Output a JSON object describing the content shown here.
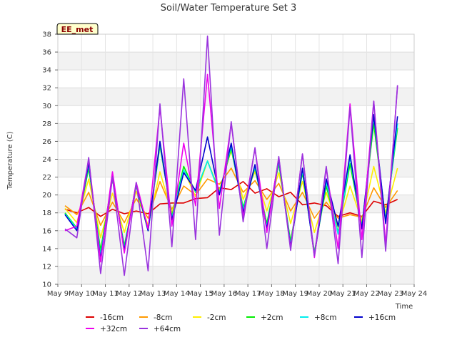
{
  "chart_data": {
    "type": "line",
    "title": "Soil/Water Temperature Set 3",
    "xlabel": "Time",
    "ylabel": "Temperature (C)",
    "badge": "EE_met",
    "xlim": [
      9,
      24
    ],
    "ylim": [
      10,
      38
    ],
    "x_ticks": [
      9,
      10,
      11,
      12,
      13,
      14,
      15,
      16,
      17,
      18,
      19,
      20,
      21,
      22,
      23,
      24
    ],
    "x_tick_labels": [
      "May 9",
      "May 10",
      "May 11",
      "May 12",
      "May 13",
      "May 14",
      "May 15",
      "May 16",
      "May 17",
      "May 18",
      "May 19",
      "May 20",
      "May 21",
      "May 22",
      "May 23",
      "May 24"
    ],
    "y_ticks": [
      10,
      12,
      14,
      16,
      18,
      20,
      22,
      24,
      26,
      28,
      30,
      32,
      34,
      36,
      38
    ],
    "y_tick_labels": [
      "10",
      "12",
      "14",
      "16",
      "18",
      "20",
      "22",
      "24",
      "26",
      "28",
      "30",
      "32",
      "34",
      "36",
      "38"
    ],
    "grid": true,
    "legend_position": "bottom",
    "series": [
      {
        "name": "-16cm",
        "color": "#dd0000",
        "x": [
          9.3,
          9.8,
          10.3,
          10.8,
          11.3,
          11.8,
          12.3,
          12.8,
          13.3,
          13.8,
          14.3,
          14.8,
          15.3,
          15.8,
          16.3,
          16.8,
          17.3,
          17.8,
          18.3,
          18.8,
          19.3,
          19.8,
          20.3,
          20.8,
          21.3,
          21.8,
          22.3,
          22.8,
          23.3
        ],
        "y": [
          18.4,
          18.0,
          18.6,
          17.6,
          18.4,
          17.9,
          18.2,
          17.9,
          19.0,
          19.1,
          19.1,
          19.6,
          19.7,
          20.8,
          20.6,
          21.5,
          20.2,
          20.7,
          19.8,
          20.3,
          18.9,
          19.1,
          18.8,
          17.6,
          18.0,
          17.6,
          19.3,
          18.9,
          19.5
        ]
      },
      {
        "name": "-8cm",
        "color": "#ff9900",
        "x": [
          9.3,
          9.8,
          10.3,
          10.8,
          11.3,
          11.8,
          12.3,
          12.8,
          13.3,
          13.8,
          14.3,
          14.8,
          15.3,
          15.8,
          16.3,
          16.8,
          17.3,
          17.8,
          18.3,
          18.8,
          19.3,
          19.8,
          20.3,
          20.8,
          21.3,
          21.8,
          22.3,
          22.8,
          23.3
        ],
        "y": [
          18.8,
          17.8,
          20.3,
          16.6,
          19.2,
          16.9,
          19.6,
          17.4,
          21.5,
          18.4,
          21.0,
          20.0,
          21.8,
          21.2,
          23.0,
          20.3,
          21.6,
          19.5,
          21.3,
          18.2,
          20.3,
          17.4,
          19.2,
          17.4,
          17.8,
          17.5,
          20.8,
          18.6,
          20.5
        ]
      },
      {
        "name": "-2cm",
        "color": "#ffee00",
        "x": [
          9.3,
          9.8,
          10.3,
          10.8,
          11.3,
          11.8,
          12.3,
          12.8,
          13.3,
          13.8,
          14.3,
          14.8,
          15.3,
          15.8,
          16.3,
          16.8,
          17.3,
          17.8,
          18.3,
          18.8,
          19.3,
          19.8,
          20.3,
          20.8,
          21.3,
          21.8,
          22.3,
          22.8,
          23.3
        ],
        "y": [
          18.5,
          16.9,
          21.8,
          15.2,
          20.2,
          15.8,
          20.4,
          16.6,
          22.6,
          18.0,
          22.8,
          19.8,
          23.8,
          20.5,
          25.0,
          19.5,
          22.6,
          18.2,
          22.5,
          16.8,
          21.5,
          15.8,
          20.3,
          16.4,
          21.0,
          17.1,
          23.2,
          18.0,
          23.0
        ]
      },
      {
        "name": "+2cm",
        "color": "#00ee00",
        "x": [
          9.3,
          9.8,
          10.3,
          10.8,
          11.3,
          11.8,
          12.3,
          12.8,
          13.3,
          13.8,
          14.3,
          14.8,
          15.3,
          15.8,
          16.3,
          16.8,
          17.3,
          17.8,
          18.3,
          18.8,
          19.3,
          19.8,
          20.3,
          20.8,
          21.3,
          21.8,
          22.3,
          22.8,
          23.3
        ],
        "y": [
          18.0,
          16.3,
          23.0,
          13.8,
          21.8,
          14.3,
          21.0,
          16.0,
          25.5,
          17.6,
          23.2,
          20.3,
          23.8,
          20.3,
          25.2,
          18.6,
          23.0,
          16.8,
          23.5,
          14.8,
          22.5,
          13.6,
          21.0,
          15.8,
          23.5,
          16.5,
          28.0,
          17.2,
          27.5
        ]
      },
      {
        "name": "+8cm",
        "color": "#00eeee",
        "x": [
          9.3,
          9.8,
          10.3,
          10.8,
          11.3,
          11.8,
          12.3,
          12.8,
          13.3,
          13.8,
          14.3,
          14.8,
          15.3,
          15.8,
          16.3,
          16.8,
          17.3,
          17.8,
          18.3,
          18.8,
          19.3,
          19.8,
          20.3,
          20.8,
          21.3,
          21.8,
          22.3,
          22.8,
          23.3
        ],
        "y": [
          17.9,
          16.2,
          23.4,
          13.2,
          22.0,
          14.0,
          21.2,
          16.0,
          25.8,
          17.4,
          22.8,
          20.4,
          23.8,
          20.2,
          25.5,
          18.3,
          23.2,
          16.4,
          23.8,
          14.4,
          22.8,
          13.4,
          21.5,
          15.6,
          24.2,
          16.3,
          28.8,
          17.0,
          28.0
        ]
      },
      {
        "name": "+16cm",
        "color": "#0000cc",
        "x": [
          9.3,
          9.8,
          10.3,
          10.8,
          11.3,
          11.8,
          12.3,
          12.8,
          13.3,
          13.8,
          14.3,
          14.8,
          15.3,
          15.8,
          16.3,
          16.8,
          17.3,
          17.8,
          18.3,
          18.8,
          19.3,
          19.8,
          20.3,
          20.8,
          21.3,
          21.8,
          22.3,
          22.8,
          23.3
        ],
        "y": [
          17.8,
          16.0,
          23.6,
          12.8,
          22.2,
          13.8,
          21.3,
          16.0,
          26.0,
          17.2,
          22.5,
          20.5,
          26.5,
          20.0,
          25.8,
          18.0,
          23.4,
          16.2,
          24.0,
          14.2,
          23.0,
          13.2,
          21.8,
          16.5,
          24.5,
          16.2,
          29.0,
          16.8,
          28.8
        ]
      },
      {
        "name": "+32cm",
        "color": "#ee00ee",
        "x": [
          9.3,
          9.8,
          10.3,
          10.8,
          11.3,
          11.8,
          12.3,
          12.8,
          13.3,
          13.8,
          14.3,
          14.8,
          15.3,
          15.8,
          16.3,
          16.8,
          17.3,
          17.8,
          18.3,
          18.8,
          19.3,
          19.8,
          20.3,
          20.8,
          21.3,
          21.8,
          22.3,
          22.8,
          23.3
        ],
        "y": [
          16.0,
          16.5,
          24.0,
          12.5,
          22.6,
          13.5,
          21.4,
          16.2,
          29.8,
          16.5,
          25.8,
          18.8,
          33.5,
          18.5,
          28.0,
          17.5,
          25.2,
          15.8,
          24.2,
          14.0,
          24.6,
          13.0,
          23.0,
          14.0,
          30.2,
          15.0,
          30.5,
          14.5,
          32.2
        ]
      },
      {
        "name": "+64cm",
        "color": "#9933dd",
        "x": [
          9.3,
          9.8,
          10.3,
          10.8,
          11.3,
          11.8,
          12.3,
          12.8,
          13.3,
          13.8,
          14.3,
          14.8,
          15.3,
          15.8,
          16.3,
          16.8,
          17.3,
          17.8,
          18.3,
          18.8,
          19.3,
          19.8,
          20.3,
          20.8,
          21.3,
          21.8,
          22.3,
          22.8,
          23.3
        ],
        "y": [
          16.2,
          15.2,
          24.2,
          11.2,
          22.0,
          11.0,
          21.4,
          11.5,
          30.2,
          14.2,
          33.0,
          15.0,
          37.8,
          15.5,
          28.2,
          17.0,
          25.3,
          14.0,
          24.3,
          13.8,
          24.6,
          13.2,
          23.2,
          12.3,
          29.8,
          13.0,
          30.5,
          13.7,
          32.3
        ]
      }
    ]
  }
}
